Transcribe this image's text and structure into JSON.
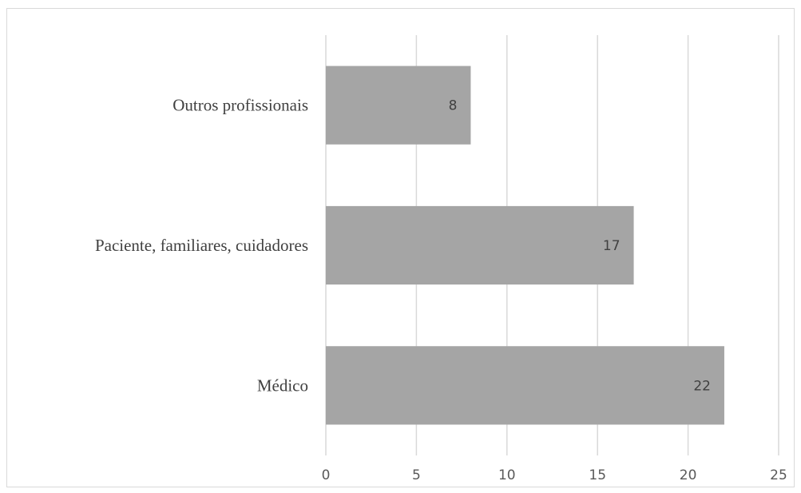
{
  "chart_data": {
    "type": "bar",
    "orientation": "horizontal",
    "categories": [
      "Médico",
      "Paciente, familiares, cuidadores",
      "Outros profissionais"
    ],
    "values": [
      22,
      17,
      8
    ],
    "data_labels": [
      "22",
      "17",
      "8"
    ],
    "title": "",
    "xlabel": "",
    "ylabel": "",
    "xlim": [
      0,
      25
    ],
    "x_ticks": [
      0,
      5,
      10,
      15,
      20,
      25
    ],
    "x_tick_labels": [
      "0",
      "5",
      "10",
      "15",
      "20",
      "25"
    ],
    "grid": "vertical",
    "legend": "none",
    "colors": {
      "bar": "#a5a5a5",
      "grid": "#d9d9d9",
      "border": "#d9d9d9"
    }
  }
}
